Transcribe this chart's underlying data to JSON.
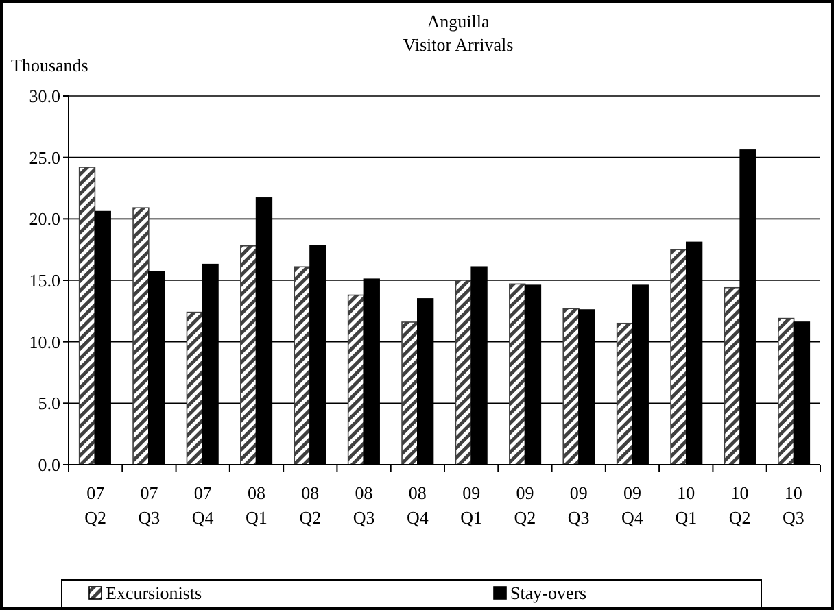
{
  "chart_data": {
    "type": "bar",
    "title": "Anguilla",
    "subtitle": "Visitor Arrivals",
    "ylabel": "Thousands",
    "categories": [
      "07\nQ2",
      "07\nQ3",
      "07\nQ4",
      "08\nQ1",
      "08\nQ2",
      "08\nQ3",
      "08\nQ4",
      "09\nQ1",
      "09\nQ2",
      "09\nQ3",
      "09\nQ4",
      "10\nQ1",
      "10\nQ2",
      "10\nQ3"
    ],
    "series": [
      {
        "name": "Excursionists",
        "color": "#404040",
        "values": [
          24.2,
          20.9,
          12.4,
          17.8,
          16.1,
          13.8,
          11.6,
          15.0,
          14.7,
          12.7,
          11.5,
          17.5,
          14.4,
          11.9
        ]
      },
      {
        "name": "Stay-overs",
        "color": "#000000",
        "values": [
          20.6,
          15.7,
          16.3,
          21.7,
          17.8,
          15.1,
          13.5,
          16.1,
          14.6,
          12.6,
          14.6,
          18.1,
          25.6,
          11.6
        ]
      }
    ],
    "ylim": [
      0,
      30
    ],
    "yticks": [
      {
        "value": 0,
        "label": "0.0"
      },
      {
        "value": 5,
        "label": "5.0"
      },
      {
        "value": 10,
        "label": "10.0"
      },
      {
        "value": 15,
        "label": "15.0"
      },
      {
        "value": 20,
        "label": "20.0"
      },
      {
        "value": 25,
        "label": "25.0"
      },
      {
        "value": 30,
        "label": "30.0"
      }
    ],
    "grid": "y",
    "legend": "bottom"
  }
}
